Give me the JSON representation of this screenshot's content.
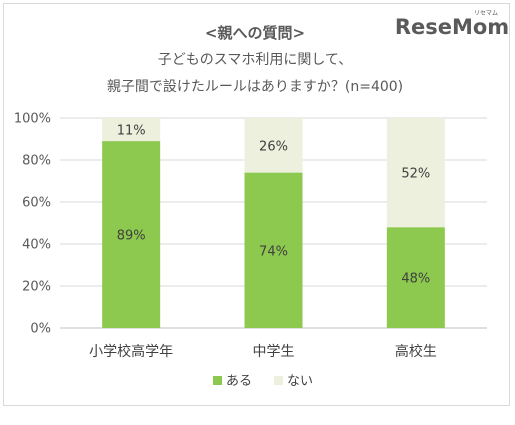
{
  "logo": {
    "text": "ReseMom",
    "ruby": "リセマム"
  },
  "colors": {
    "aru": "#8dc94e",
    "nai": "#ecf0dc",
    "grid": "#d9d9d9",
    "axis": "#bfbfbf"
  },
  "chart_data": {
    "type": "bar",
    "stacked": true,
    "title": "<親への質問>",
    "subtitle_lines": [
      "子どものスマホ利用に関して、",
      "親子間で設けたルールはありますか？(n=400)"
    ],
    "categories": [
      "小学校高学年",
      "中学生",
      "高校生"
    ],
    "series": [
      {
        "name": "ある",
        "values": [
          89,
          74,
          48
        ],
        "labels": [
          "89%",
          "74%",
          "48%"
        ]
      },
      {
        "name": "ない",
        "values": [
          11,
          26,
          52
        ],
        "labels": [
          "11%",
          "26%",
          "52%"
        ]
      }
    ],
    "yticks": [
      "0%",
      "20%",
      "40%",
      "60%",
      "80%",
      "100%"
    ],
    "ylim": [
      0,
      100
    ],
    "grid": true,
    "legend_position": "bottom"
  }
}
